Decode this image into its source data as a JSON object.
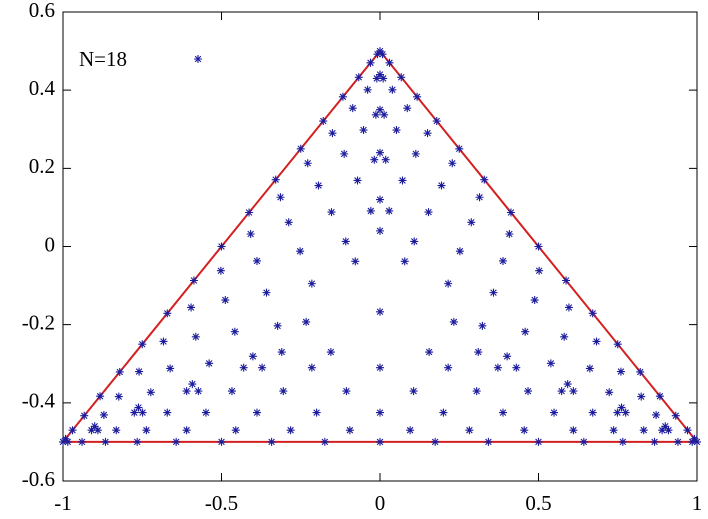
{
  "chart_data": {
    "type": "scatter",
    "xlim": [
      -1,
      1
    ],
    "ylim": [
      -0.6,
      0.6
    ],
    "xticks": [
      -1,
      -0.5,
      0,
      0.5,
      1
    ],
    "yticks": [
      -0.6,
      -0.4,
      -0.2,
      0,
      0.2,
      0.4,
      0.6
    ],
    "grid": false,
    "legend": "top-left",
    "outline": {
      "color": "#d42020",
      "x": [
        -1,
        1,
        0,
        -1
      ],
      "values": [
        -0.5,
        -0.5,
        0.5,
        -0.5
      ]
    },
    "series": [
      {
        "name": "N=18",
        "color": "#1c1c9c",
        "x": [
          -1,
          -0.985,
          -0.94,
          -0.866,
          -0.766,
          -0.643,
          -0.5,
          -0.342,
          -0.174,
          0,
          0.174,
          0.342,
          0.5,
          0.643,
          0.766,
          0.866,
          0.94,
          0.985,
          1,
          -0.992,
          -0.97,
          -0.933,
          -0.883,
          -0.821,
          -0.75,
          -0.671,
          -0.587,
          -0.5,
          -0.413,
          -0.329,
          -0.25,
          -0.179,
          -0.117,
          -0.067,
          -0.03,
          -0.008,
          0.992,
          0.97,
          0.933,
          0.883,
          0.821,
          0.75,
          0.671,
          0.587,
          0.5,
          0.413,
          0.329,
          0.25,
          0.179,
          0.117,
          0.067,
          0.03,
          0.008,
          0,
          -0.91,
          -0.89,
          -0.832,
          -0.737,
          -0.61,
          -0.455,
          -0.282,
          -0.095,
          0.095,
          0.282,
          0.455,
          0.61,
          0.737,
          0.832,
          0.89,
          0.91,
          0.9,
          0.871,
          0.824,
          0.76,
          0.683,
          0.596,
          0.502,
          0.408,
          0.314,
          0.228,
          0.15,
          0.086,
          0.039,
          0.01,
          0,
          -0.01,
          -0.039,
          -0.086,
          -0.15,
          -0.228,
          -0.314,
          -0.408,
          -0.502,
          -0.596,
          -0.683,
          -0.76,
          -0.824,
          -0.871,
          -0.9,
          -0.775,
          -0.749,
          -0.671,
          -0.549,
          -0.388,
          -0.2,
          0,
          0.2,
          0.388,
          0.549,
          0.671,
          0.749,
          0.775,
          0.762,
          0.723,
          0.662,
          0.581,
          0.488,
          0.388,
          0.288,
          0.194,
          0.113,
          0.052,
          0.013,
          0,
          -0.013,
          -0.052,
          -0.113,
          -0.194,
          -0.288,
          -0.388,
          -0.488,
          -0.581,
          -0.662,
          -0.723,
          -0.762,
          -0.61,
          -0.573,
          -0.467,
          -0.305,
          -0.106,
          0.106,
          0.305,
          0.467,
          0.573,
          0.61,
          0.592,
          0.539,
          0.458,
          0.358,
          0.252,
          0.153,
          0.071,
          0.018,
          0,
          -0.018,
          -0.071,
          -0.153,
          -0.252,
          -0.358,
          -0.458,
          -0.539,
          -0.592,
          -0.43,
          -0.372,
          -0.215,
          0,
          0.215,
          0.372,
          0.43,
          0.401,
          0.323,
          0.215,
          0.108,
          0.029,
          0,
          -0.029,
          -0.108,
          -0.215,
          -0.323,
          -0.401,
          -0.31,
          -0.155,
          0.155,
          0.31,
          0.233,
          0.078,
          0,
          -0.078,
          -0.233,
          0
        ],
        "values": [
          -0.5,
          -0.5,
          -0.5,
          -0.5,
          -0.5,
          -0.5,
          -0.5,
          -0.5,
          -0.5,
          -0.5,
          -0.5,
          -0.5,
          -0.5,
          -0.5,
          -0.5,
          -0.5,
          -0.5,
          -0.5,
          -0.5,
          -0.492,
          -0.47,
          -0.433,
          -0.383,
          -0.321,
          -0.25,
          -0.171,
          -0.087,
          0,
          0.087,
          0.171,
          0.25,
          0.321,
          0.383,
          0.433,
          0.47,
          0.492,
          -0.492,
          -0.47,
          -0.433,
          -0.383,
          -0.321,
          -0.25,
          -0.171,
          -0.087,
          0,
          0.087,
          0.171,
          0.25,
          0.321,
          0.383,
          0.433,
          0.47,
          0.492,
          0.5,
          -0.47,
          -0.47,
          -0.47,
          -0.47,
          -0.47,
          -0.47,
          -0.47,
          -0.47,
          -0.47,
          -0.47,
          -0.47,
          -0.47,
          -0.47,
          -0.47,
          -0.47,
          -0.47,
          -0.46,
          -0.431,
          -0.384,
          -0.32,
          -0.243,
          -0.156,
          -0.062,
          0.032,
          0.126,
          0.213,
          0.29,
          0.354,
          0.401,
          0.43,
          0.44,
          0.43,
          0.401,
          0.354,
          0.29,
          0.213,
          0.126,
          0.032,
          -0.062,
          -0.156,
          -0.243,
          -0.32,
          -0.384,
          -0.431,
          -0.46,
          -0.425,
          -0.425,
          -0.425,
          -0.425,
          -0.425,
          -0.425,
          -0.425,
          -0.425,
          -0.425,
          -0.425,
          -0.425,
          -0.425,
          -0.425,
          -0.412,
          -0.373,
          -0.312,
          -0.231,
          -0.137,
          -0.037,
          0.062,
          0.156,
          0.237,
          0.298,
          0.337,
          0.35,
          0.337,
          0.298,
          0.237,
          0.156,
          0.062,
          -0.037,
          -0.137,
          -0.231,
          -0.312,
          -0.373,
          -0.412,
          -0.37,
          -0.37,
          -0.37,
          -0.37,
          -0.37,
          -0.37,
          -0.37,
          -0.37,
          -0.37,
          -0.37,
          -0.352,
          -0.299,
          -0.218,
          -0.118,
          -0.012,
          0.088,
          0.169,
          0.222,
          0.24,
          0.222,
          0.169,
          0.088,
          -0.012,
          -0.118,
          -0.218,
          -0.299,
          -0.352,
          -0.31,
          -0.31,
          -0.31,
          -0.31,
          -0.31,
          -0.31,
          -0.31,
          -0.281,
          -0.203,
          -0.095,
          0.013,
          0.091,
          0.12,
          0.091,
          0.013,
          -0.095,
          -0.203,
          -0.281,
          -0.27,
          -0.27,
          -0.27,
          -0.27,
          -0.193,
          -0.038,
          0.04,
          -0.038,
          -0.193,
          -0.167
        ]
      }
    ]
  }
}
